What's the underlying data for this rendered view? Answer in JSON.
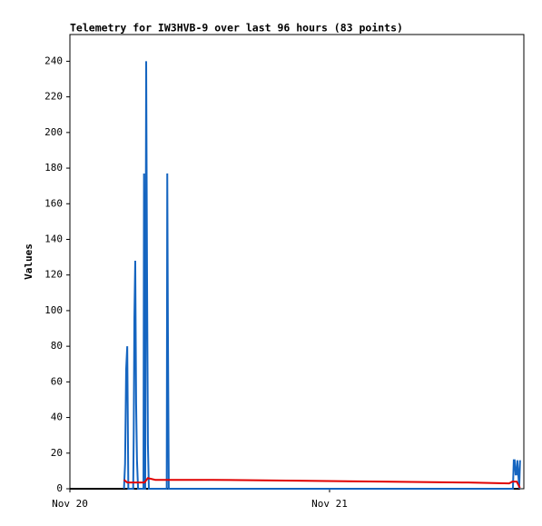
{
  "chart_data": {
    "type": "line",
    "title": "Telemetry for IW3HVB-9 over last 96 hours (83 points)",
    "y_label": "Values",
    "xlim": [
      0,
      41.96
    ],
    "xticks": [
      {
        "value": 0,
        "label": "Nov 20"
      },
      {
        "value": 24,
        "label": "Nov 21"
      }
    ],
    "ylim": [
      0,
      255
    ],
    "yticks": [
      0,
      20,
      40,
      60,
      80,
      100,
      120,
      140,
      160,
      180,
      200,
      220,
      240
    ],
    "grid": false,
    "series": [
      {
        "color": "#000000",
        "x": [
          0,
          41.6
        ],
        "values": [
          0,
          0
        ]
      },
      {
        "color": "#1565c0",
        "x": [
          5.0,
          5.1,
          5.15,
          5.2,
          5.3,
          5.4,
          5.85,
          5.9,
          5.96,
          6.04,
          6.12,
          6.2,
          6.3,
          6.8,
          6.85,
          6.9,
          6.96,
          7.05,
          7.13,
          7.21,
          7.3,
          8.95,
          9.0,
          9.06,
          9.14,
          9.2,
          40.95,
          41.03,
          41.11,
          41.2,
          41.28,
          41.36,
          41.45,
          41.53,
          41.61
        ],
        "values": [
          0,
          14,
          40,
          67,
          80,
          0,
          0,
          32,
          96,
          128,
          48,
          16,
          0,
          0,
          177,
          0,
          0,
          240,
          120,
          25,
          0,
          0,
          177,
          88,
          0,
          0,
          0,
          16,
          16,
          8,
          8,
          16,
          8,
          0,
          16
        ]
      },
      {
        "color": "#e00000",
        "x": [
          5.0,
          5.3,
          6.9,
          7.2,
          7.9,
          13.2,
          21.0,
          28.8,
          36.8,
          40.6,
          40.9,
          41.3,
          41.6
        ],
        "values": [
          5,
          3.5,
          3.5,
          6,
          5,
          5,
          4.5,
          4,
          3.5,
          3,
          4,
          4,
          0.5
        ]
      }
    ]
  }
}
